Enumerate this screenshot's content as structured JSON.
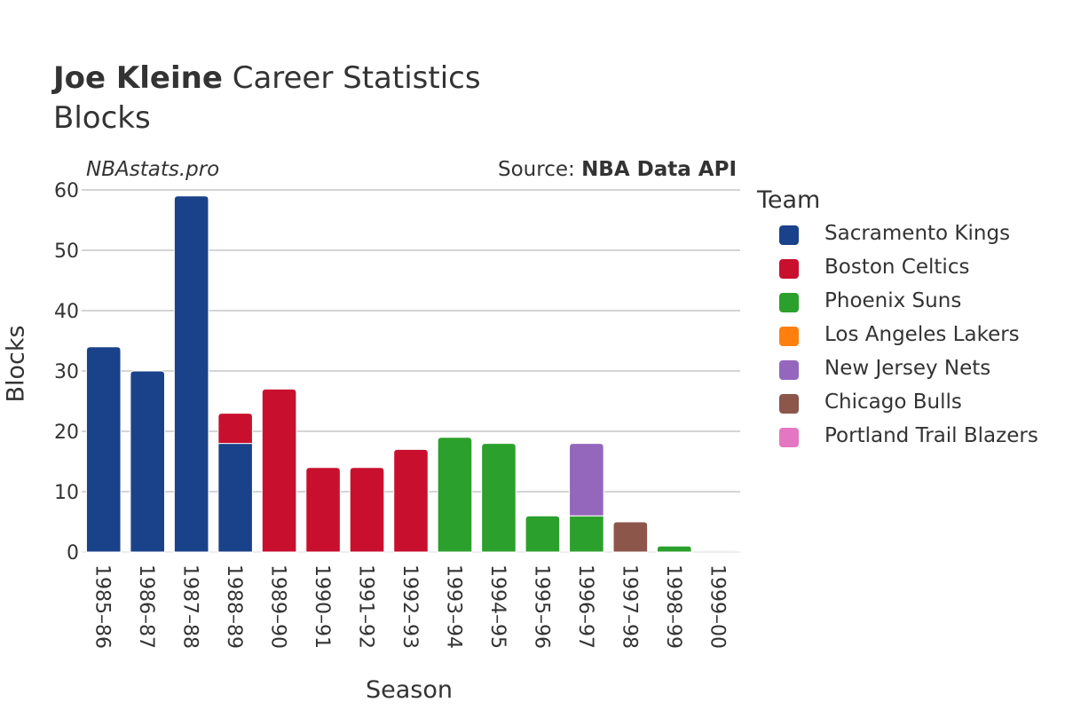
{
  "header": {
    "player_name": "Joe Kleine",
    "title_suffix": "Career Statistics",
    "subtitle": "Blocks",
    "watermark": "NBAstats.pro",
    "source_prefix": "Source: ",
    "source_name": "NBA Data API"
  },
  "legend": {
    "title": "Team",
    "items": [
      {
        "name": "Sacramento Kings",
        "color": "#1a428a"
      },
      {
        "name": "Boston Celtics",
        "color": "#c8102e"
      },
      {
        "name": "Phoenix Suns",
        "color": "#2ca02c"
      },
      {
        "name": "Los Angeles Lakers",
        "color": "#ff7f0e"
      },
      {
        "name": "New Jersey Nets",
        "color": "#9467bd"
      },
      {
        "name": "Chicago Bulls",
        "color": "#8c564b"
      },
      {
        "name": "Portland Trail Blazers",
        "color": "#e377c2"
      }
    ]
  },
  "chart_data": {
    "type": "bar",
    "stacked": true,
    "xlabel": "Season",
    "ylabel": "Blocks",
    "ylim": [
      0,
      60
    ],
    "yticks": [
      0,
      10,
      20,
      30,
      40,
      50,
      60
    ],
    "grid": true,
    "legend_position": "right",
    "categories": [
      "1985–86",
      "1986–87",
      "1987–88",
      "1988–89",
      "1989–90",
      "1990–91",
      "1991–92",
      "1992–93",
      "1993–94",
      "1994–95",
      "1995–96",
      "1996–97",
      "1997–98",
      "1998–99",
      "1999–00"
    ],
    "series": [
      {
        "name": "Sacramento Kings",
        "color": "#1a428a",
        "values": [
          34,
          30,
          59,
          18,
          0,
          0,
          0,
          0,
          0,
          0,
          0,
          0,
          0,
          0,
          0
        ]
      },
      {
        "name": "Boston Celtics",
        "color": "#c8102e",
        "values": [
          0,
          0,
          0,
          5,
          27,
          14,
          14,
          17,
          0,
          0,
          0,
          0,
          0,
          0,
          0
        ]
      },
      {
        "name": "Phoenix Suns",
        "color": "#2ca02c",
        "values": [
          0,
          0,
          0,
          0,
          0,
          0,
          0,
          0,
          19,
          18,
          6,
          6,
          0,
          1,
          0
        ]
      },
      {
        "name": "Los Angeles Lakers",
        "color": "#ff7f0e",
        "values": [
          0,
          0,
          0,
          0,
          0,
          0,
          0,
          0,
          0,
          0,
          0,
          0,
          0,
          0,
          0
        ]
      },
      {
        "name": "New Jersey Nets",
        "color": "#9467bd",
        "values": [
          0,
          0,
          0,
          0,
          0,
          0,
          0,
          0,
          0,
          0,
          0,
          12,
          0,
          0,
          0
        ]
      },
      {
        "name": "Chicago Bulls",
        "color": "#8c564b",
        "values": [
          0,
          0,
          0,
          0,
          0,
          0,
          0,
          0,
          0,
          0,
          0,
          0,
          5,
          0,
          0
        ]
      },
      {
        "name": "Portland Trail Blazers",
        "color": "#e377c2",
        "values": [
          0,
          0,
          0,
          0,
          0,
          0,
          0,
          0,
          0,
          0,
          0,
          0,
          0,
          0,
          0
        ]
      }
    ]
  }
}
